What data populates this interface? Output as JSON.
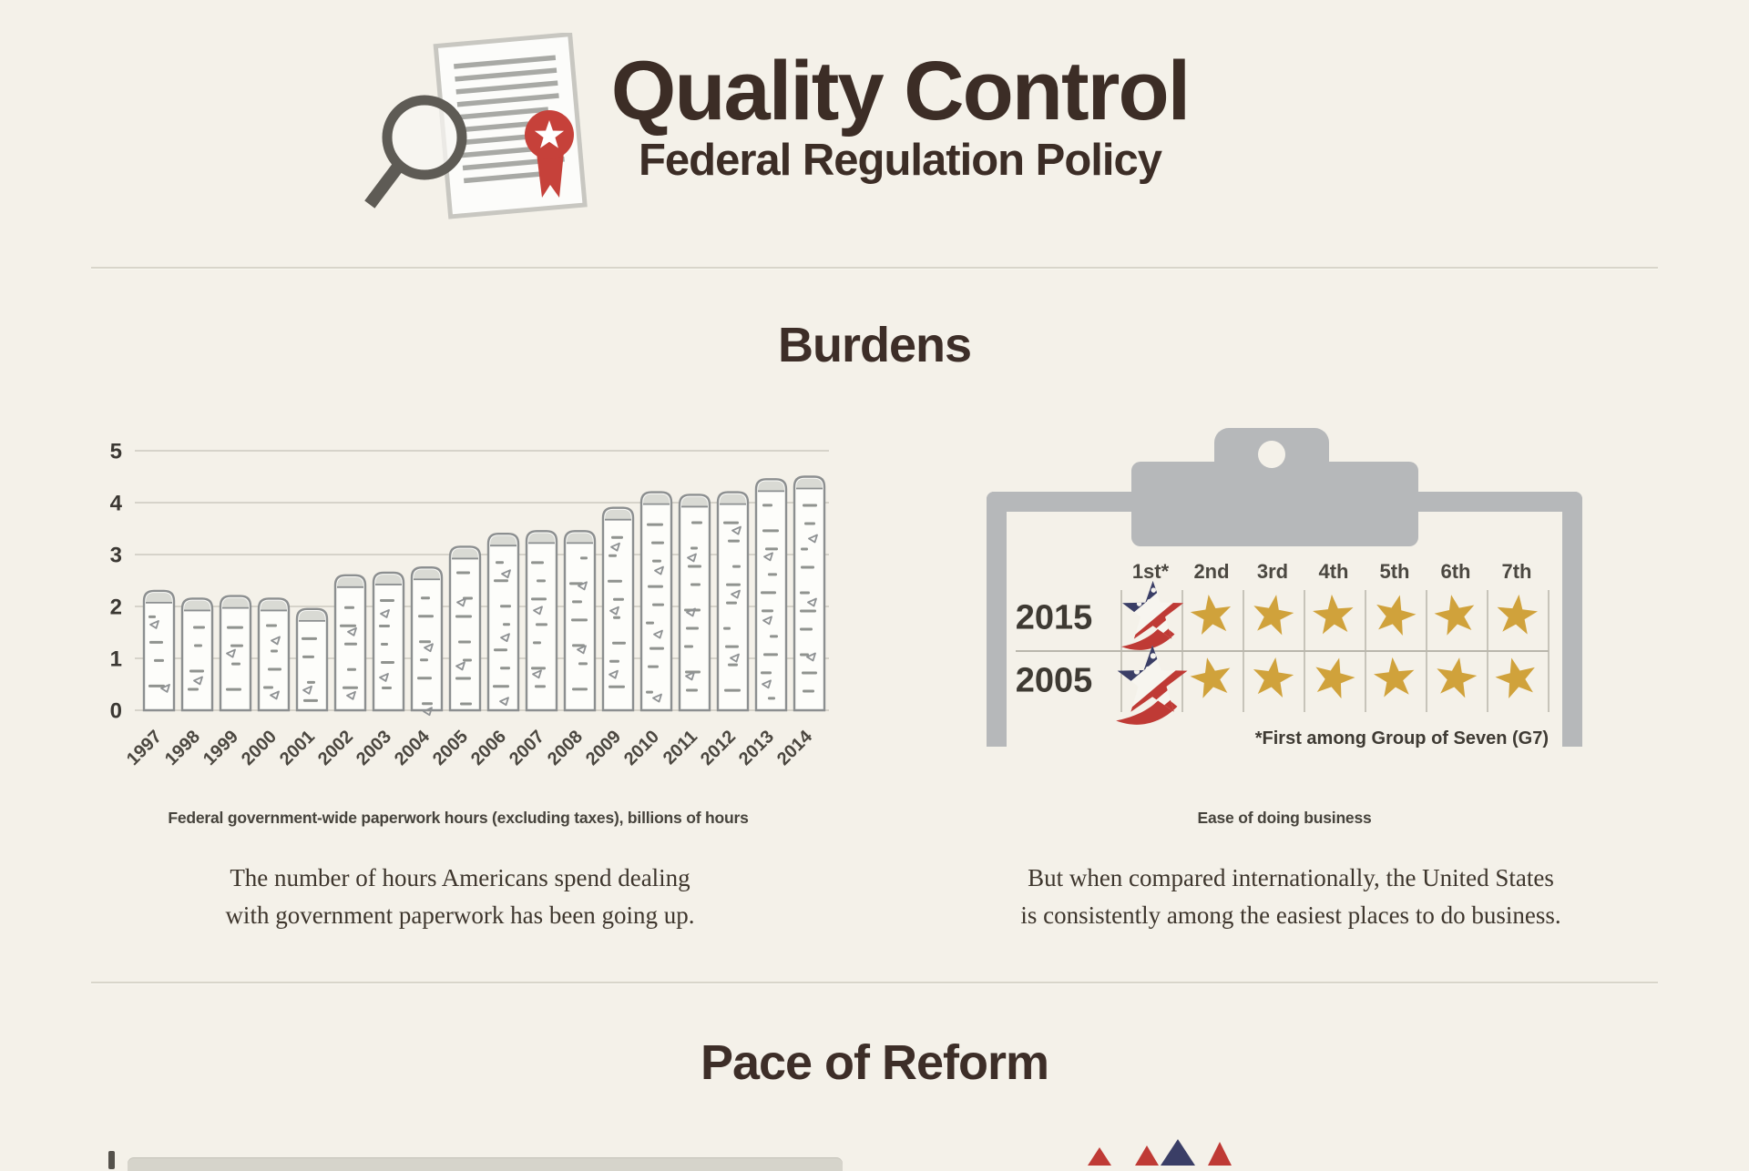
{
  "header": {
    "title": "Quality Control",
    "subtitle": "Federal Regulation Policy"
  },
  "sections": {
    "burdens": {
      "heading": "Burdens",
      "left_text": [
        "The number of hours Americans spend dealing",
        "with government paperwork has been going up."
      ],
      "right_text": [
        "But when compared internationally, the United States",
        "is consistently among the easiest places to do business."
      ]
    },
    "pace": {
      "heading": "Pace of Reform"
    }
  },
  "chart_data": [
    {
      "type": "bar",
      "title": "Federal government-wide paperwork hours (excluding taxes), billions of hours",
      "categories": [
        "1997",
        "1998",
        "1999",
        "2000",
        "2001",
        "2002",
        "2003",
        "2004",
        "2005",
        "2006",
        "2007",
        "2008",
        "2009",
        "2010",
        "2011",
        "2012",
        "2013",
        "2014"
      ],
      "values": [
        2.3,
        2.15,
        2.2,
        2.15,
        1.95,
        2.6,
        2.65,
        2.75,
        3.15,
        3.4,
        3.45,
        3.45,
        3.9,
        4.2,
        4.15,
        4.2,
        4.45,
        4.5
      ],
      "xlabel": "",
      "ylabel": "",
      "ylim": [
        0,
        5
      ],
      "yticks": [
        0,
        1,
        2,
        3,
        4,
        5
      ],
      "grid": true
    },
    {
      "type": "table",
      "title": "Ease of doing business",
      "columns": [
        "1st*",
        "2nd",
        "3rd",
        "4th",
        "5th",
        "6th",
        "7th"
      ],
      "rows": [
        {
          "label": "2015",
          "cells": [
            "us",
            "gold",
            "gold",
            "gold",
            "gold",
            "gold",
            "gold"
          ]
        },
        {
          "label": "2005",
          "cells": [
            "us",
            "gold",
            "gold",
            "gold",
            "gold",
            "gold",
            "gold"
          ]
        }
      ],
      "footnote": "*First among Group of Seven (G7)"
    }
  ],
  "colors": {
    "background": "#f4f1e9",
    "heading_brown": "#3c2d26",
    "gray": "#b6b8ba",
    "bar_outline": "#8c8f90",
    "gold_star": "#d0a23b",
    "flag_navy": "#3a3e66",
    "flag_red": "#bf3a35",
    "ribbon_red": "#c6413a"
  }
}
